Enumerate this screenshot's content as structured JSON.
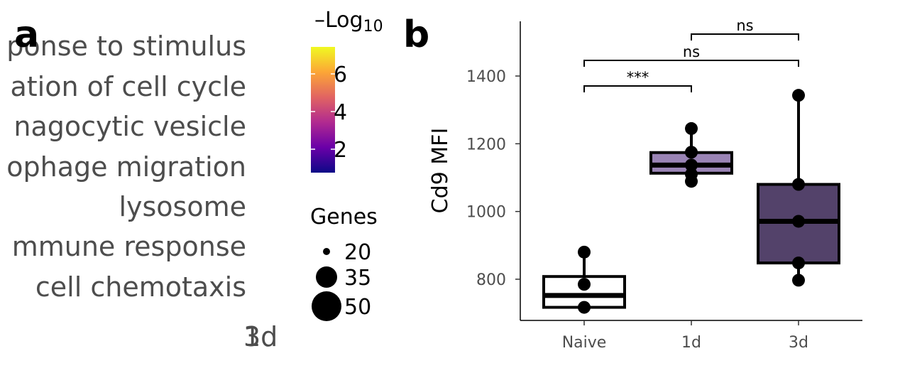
{
  "panel_a": {
    "letter": "a",
    "terms": [
      "ponse to stimulus",
      "ation of cell cycle",
      "nagocytic vesicle",
      "ophage migration",
      "lysosome",
      "mmune response",
      "cell chemotaxis"
    ],
    "x_tick_overlap_a": "1",
    "x_tick_overlap_b": "3d",
    "colorbar": {
      "title_main": "Log",
      "title_sub": "10",
      "ticks": [
        "6",
        "4",
        "2"
      ],
      "gradient": [
        "#0d0887",
        "#6a00a8",
        "#b12a90",
        "#e16462",
        "#fca636",
        "#f0f921"
      ]
    },
    "size_legend": {
      "title": "Genes",
      "items": [
        "20",
        "35",
        "50"
      ]
    }
  },
  "panel_b": {
    "letter": "b",
    "ylabel": "Cd9 MFI",
    "yticks": [
      "800",
      "1000",
      "1200",
      "1400"
    ],
    "categories": [
      "Naive",
      "1d",
      "3d"
    ],
    "brackets": [
      {
        "from": "Naive",
        "to": "1d",
        "label": "***"
      },
      {
        "from": "Naive",
        "to": "3d",
        "label": "ns"
      },
      {
        "from": "1d",
        "to": "3d",
        "label": "ns"
      }
    ]
  },
  "chart_data": [
    {
      "type": "box",
      "ylabel": "Cd9 MFI",
      "ylim": [
        680,
        1560
      ],
      "yticks": [
        800,
        1000,
        1200,
        1400
      ],
      "categories": [
        "Naive",
        "1d",
        "3d"
      ],
      "colors": [
        "#ffffff",
        "#9a84b5",
        "#53426a"
      ],
      "boxes": [
        {
          "min": 717,
          "q1": 717,
          "median": 752,
          "q3": 808,
          "max": 880
        },
        {
          "min": 1089,
          "q1": 1113,
          "median": 1137,
          "q3": 1174,
          "max": 1245
        },
        {
          "min": 797,
          "q1": 848,
          "median": 971,
          "q3": 1080,
          "max": 1343
        }
      ],
      "points": [
        [
          880,
          785,
          717
        ],
        [
          1245,
          1175,
          1137,
          1110,
          1089
        ],
        [
          1343,
          1080,
          971,
          848,
          797
        ]
      ],
      "significance": [
        {
          "from": "Naive",
          "to": "1d",
          "label": "***"
        },
        {
          "from": "Naive",
          "to": "3d",
          "label": "ns"
        },
        {
          "from": "1d",
          "to": "3d",
          "label": "ns"
        }
      ]
    }
  ]
}
